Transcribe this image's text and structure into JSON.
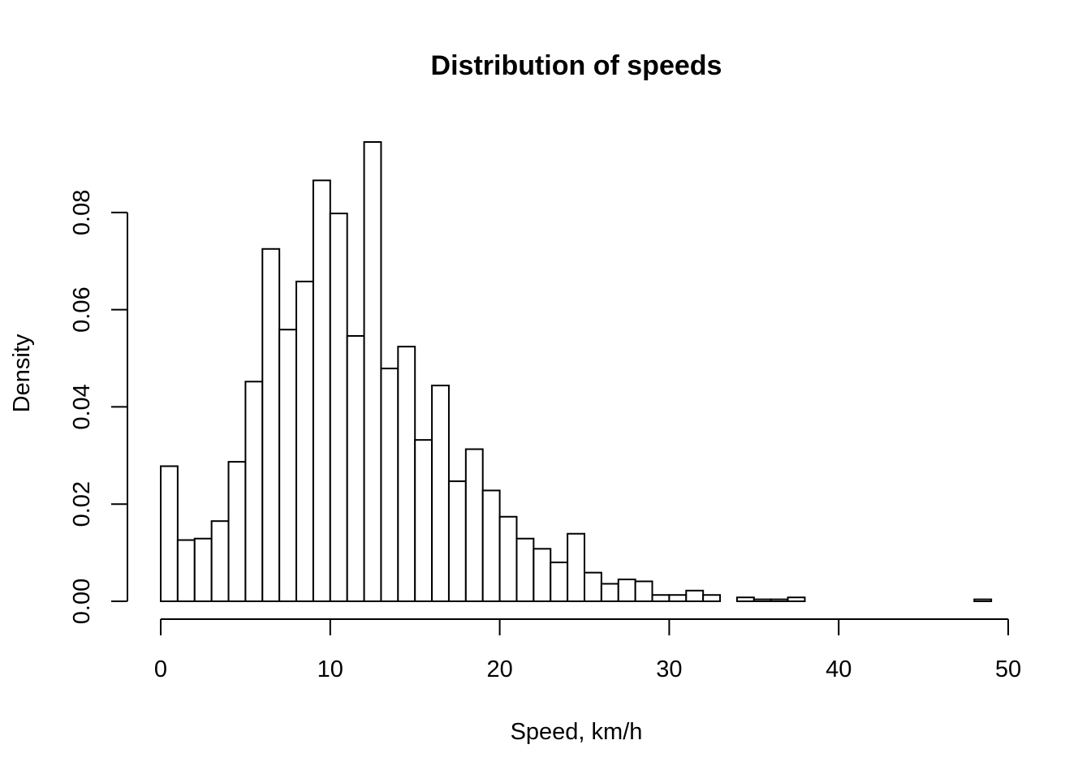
{
  "chart_data": {
    "type": "bar",
    "subtype": "histogram",
    "title": "Distribution of speeds",
    "xlabel": "Speed, km/h",
    "ylabel": "Density",
    "xlim": [
      0,
      49
    ],
    "ylim": [
      0,
      0.094
    ],
    "x_ticks": [
      0,
      10,
      20,
      30,
      40,
      50
    ],
    "x_tick_labels": [
      "0",
      "10",
      "20",
      "30",
      "40",
      "50"
    ],
    "y_ticks": [
      0,
      0.02,
      0.04,
      0.06,
      0.08
    ],
    "y_tick_labels": [
      "0.00",
      "0.02",
      "0.04",
      "0.06",
      "0.08"
    ],
    "bin_width": 1,
    "bin_start": 0,
    "values": [
      0.0278,
      0.0126,
      0.0129,
      0.0165,
      0.0287,
      0.0452,
      0.0725,
      0.0559,
      0.0658,
      0.0866,
      0.0798,
      0.0546,
      0.0945,
      0.0479,
      0.0524,
      0.0332,
      0.0444,
      0.0247,
      0.0313,
      0.0228,
      0.0174,
      0.0129,
      0.0108,
      0.008,
      0.0139,
      0.0059,
      0.0036,
      0.0045,
      0.0041,
      0.0013,
      0.0013,
      0.0022,
      0.0013,
      0.0,
      0.0008,
      0.0004,
      0.0004,
      0.0008,
      0.0,
      0.0,
      0.0,
      0.0,
      0.0,
      0.0,
      0.0,
      0.0,
      0.0,
      0.0,
      0.0004
    ],
    "bar_fill": "#ffffff",
    "bar_stroke": "#000000",
    "grid": false,
    "legend": "none"
  }
}
